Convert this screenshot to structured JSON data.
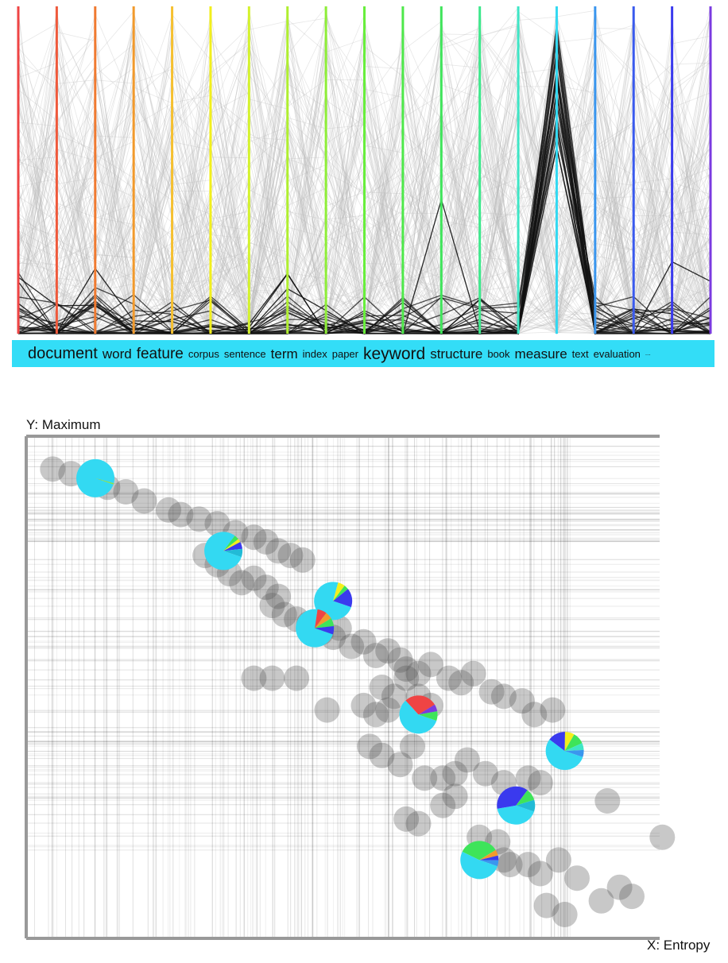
{
  "chart_data": [
    {
      "type": "parallel-coordinates",
      "axis_colors": [
        "#ef4444",
        "#ef5a3c",
        "#f07a30",
        "#f29a2c",
        "#f5c030",
        "#f2ef1c",
        "#d4f22c",
        "#b0ef30",
        "#8eee38",
        "#68ee3c",
        "#4ee84a",
        "#3ee45a",
        "#3ee88c",
        "#3ee6c6",
        "#33d9f2",
        "#3a96ee",
        "#3a5aee",
        "#3a3aee",
        "#7a3ae0"
      ],
      "highlight_color": "#111111",
      "background_line_color": "#bbbbbb",
      "words": [
        {
          "text": "document",
          "size": 20
        },
        {
          "text": "word",
          "size": 17
        },
        {
          "text": "feature",
          "size": 19
        },
        {
          "text": "corpus",
          "size": 13
        },
        {
          "text": "sentence",
          "size": 13
        },
        {
          "text": "term",
          "size": 17
        },
        {
          "text": "index",
          "size": 13
        },
        {
          "text": "paper",
          "size": 13
        },
        {
          "text": "keyword",
          "size": 21
        },
        {
          "text": "structure",
          "size": 17
        },
        {
          "text": "book",
          "size": 13
        },
        {
          "text": "measure",
          "size": 17
        },
        {
          "text": "text",
          "size": 13
        },
        {
          "text": "evaluation",
          "size": 13
        },
        {
          "text": "...",
          "size": 8
        }
      ]
    },
    {
      "type": "scatter",
      "xlabel": "X: Entropy",
      "ylabel": "Y: Maximum",
      "xlim": [
        0,
        1
      ],
      "ylim": [
        0,
        1
      ],
      "points": [
        [
          0.02,
          0.98
        ],
        [
          0.05,
          0.97
        ],
        [
          0.08,
          0.96
        ],
        [
          0.11,
          0.94
        ],
        [
          0.14,
          0.93
        ],
        [
          0.17,
          0.91
        ],
        [
          0.21,
          0.89
        ],
        [
          0.23,
          0.88
        ],
        [
          0.26,
          0.87
        ],
        [
          0.29,
          0.86
        ],
        [
          0.32,
          0.84
        ],
        [
          0.35,
          0.83
        ],
        [
          0.37,
          0.82
        ],
        [
          0.39,
          0.8
        ],
        [
          0.41,
          0.79
        ],
        [
          0.43,
          0.78
        ],
        [
          0.27,
          0.79
        ],
        [
          0.29,
          0.77
        ],
        [
          0.31,
          0.75
        ],
        [
          0.33,
          0.73
        ],
        [
          0.35,
          0.74
        ],
        [
          0.37,
          0.72
        ],
        [
          0.39,
          0.7
        ],
        [
          0.38,
          0.68
        ],
        [
          0.4,
          0.66
        ],
        [
          0.42,
          0.65
        ],
        [
          0.44,
          0.64
        ],
        [
          0.46,
          0.62
        ],
        [
          0.48,
          0.61
        ],
        [
          0.49,
          0.63
        ],
        [
          0.51,
          0.59
        ],
        [
          0.53,
          0.6
        ],
        [
          0.55,
          0.57
        ],
        [
          0.57,
          0.58
        ],
        [
          0.59,
          0.56
        ],
        [
          0.6,
          0.54
        ],
        [
          0.62,
          0.53
        ],
        [
          0.64,
          0.55
        ],
        [
          0.67,
          0.52
        ],
        [
          0.69,
          0.51
        ],
        [
          0.71,
          0.53
        ],
        [
          0.74,
          0.49
        ],
        [
          0.76,
          0.48
        ],
        [
          0.79,
          0.47
        ],
        [
          0.81,
          0.44
        ],
        [
          0.84,
          0.45
        ],
        [
          0.56,
          0.5
        ],
        [
          0.58,
          0.48
        ],
        [
          0.6,
          0.52
        ],
        [
          0.53,
          0.46
        ],
        [
          0.55,
          0.44
        ],
        [
          0.57,
          0.45
        ],
        [
          0.62,
          0.48
        ],
        [
          0.64,
          0.46
        ],
        [
          0.35,
          0.52
        ],
        [
          0.38,
          0.52
        ],
        [
          0.42,
          0.52
        ],
        [
          0.47,
          0.45
        ],
        [
          0.54,
          0.37
        ],
        [
          0.56,
          0.35
        ],
        [
          0.61,
          0.37
        ],
        [
          0.59,
          0.33
        ],
        [
          0.63,
          0.3
        ],
        [
          0.66,
          0.3
        ],
        [
          0.68,
          0.31
        ],
        [
          0.7,
          0.34
        ],
        [
          0.73,
          0.31
        ],
        [
          0.76,
          0.29
        ],
        [
          0.8,
          0.3
        ],
        [
          0.82,
          0.29
        ],
        [
          0.68,
          0.26
        ],
        [
          0.66,
          0.24
        ],
        [
          0.6,
          0.21
        ],
        [
          0.62,
          0.2
        ],
        [
          0.72,
          0.17
        ],
        [
          0.77,
          0.11
        ],
        [
          0.8,
          0.11
        ],
        [
          0.75,
          0.16
        ],
        [
          0.82,
          0.09
        ],
        [
          0.85,
          0.12
        ],
        [
          0.88,
          0.08
        ],
        [
          0.95,
          0.06
        ],
        [
          0.97,
          0.04
        ],
        [
          0.83,
          0.02
        ],
        [
          0.86,
          0.0
        ],
        [
          0.92,
          0.03
        ],
        [
          1.02,
          0.17
        ],
        [
          0.93,
          0.25
        ],
        [
          0.76,
          0.12
        ]
      ],
      "pies": [
        {
          "x": 0.09,
          "y": 0.96,
          "slices": [
            {
              "value": 0.99,
              "color": "#33d9f2"
            },
            {
              "value": 0.01,
              "color": "#8ee838"
            }
          ]
        },
        {
          "x": 0.3,
          "y": 0.8,
          "slices": [
            {
              "value": 0.8,
              "color": "#33d9f2"
            },
            {
              "value": 0.04,
              "color": "#3ee45a"
            },
            {
              "value": 0.03,
              "color": "#f2ef1c"
            },
            {
              "value": 0.06,
              "color": "#3a3aee"
            },
            {
              "value": 0.07,
              "color": "#22bbd6"
            }
          ]
        },
        {
          "x": 0.48,
          "y": 0.69,
          "slices": [
            {
              "value": 0.74,
              "color": "#33d9f2"
            },
            {
              "value": 0.06,
              "color": "#f2ef1c"
            },
            {
              "value": 0.04,
              "color": "#3ee45a"
            },
            {
              "value": 0.16,
              "color": "#3a3aee"
            }
          ]
        },
        {
          "x": 0.45,
          "y": 0.63,
          "slices": [
            {
              "value": 0.72,
              "color": "#33d9f2"
            },
            {
              "value": 0.08,
              "color": "#ef4444"
            },
            {
              "value": 0.06,
              "color": "#f29a2c"
            },
            {
              "value": 0.07,
              "color": "#3ee45a"
            },
            {
              "value": 0.07,
              "color": "#3a3aee"
            }
          ]
        },
        {
          "x": 0.62,
          "y": 0.44,
          "slices": [
            {
              "value": 0.58,
              "color": "#33d9f2"
            },
            {
              "value": 0.28,
              "color": "#ef4444"
            },
            {
              "value": 0.06,
              "color": "#7a3ae0"
            },
            {
              "value": 0.08,
              "color": "#3ee45a"
            }
          ]
        },
        {
          "x": 0.86,
          "y": 0.36,
          "slices": [
            {
              "value": 0.55,
              "color": "#33d9f2"
            },
            {
              "value": 0.15,
              "color": "#3a3aee"
            },
            {
              "value": 0.08,
              "color": "#f2ef1c"
            },
            {
              "value": 0.1,
              "color": "#3ee45a"
            },
            {
              "value": 0.06,
              "color": "#3ee6c6"
            },
            {
              "value": 0.06,
              "color": "#3a96ee"
            }
          ]
        },
        {
          "x": 0.78,
          "y": 0.24,
          "slices": [
            {
              "value": 0.42,
              "color": "#33d9f2"
            },
            {
              "value": 0.38,
              "color": "#3a3aee"
            },
            {
              "value": 0.1,
              "color": "#3ee45a"
            },
            {
              "value": 0.1,
              "color": "#22bbd6"
            }
          ]
        },
        {
          "x": 0.72,
          "y": 0.12,
          "slices": [
            {
              "value": 0.52,
              "color": "#33d9f2"
            },
            {
              "value": 0.34,
              "color": "#3ee45a"
            },
            {
              "value": 0.05,
              "color": "#f29a2c"
            },
            {
              "value": 0.04,
              "color": "#3a3aee"
            },
            {
              "value": 0.05,
              "color": "#3a96ee"
            }
          ]
        }
      ]
    }
  ]
}
